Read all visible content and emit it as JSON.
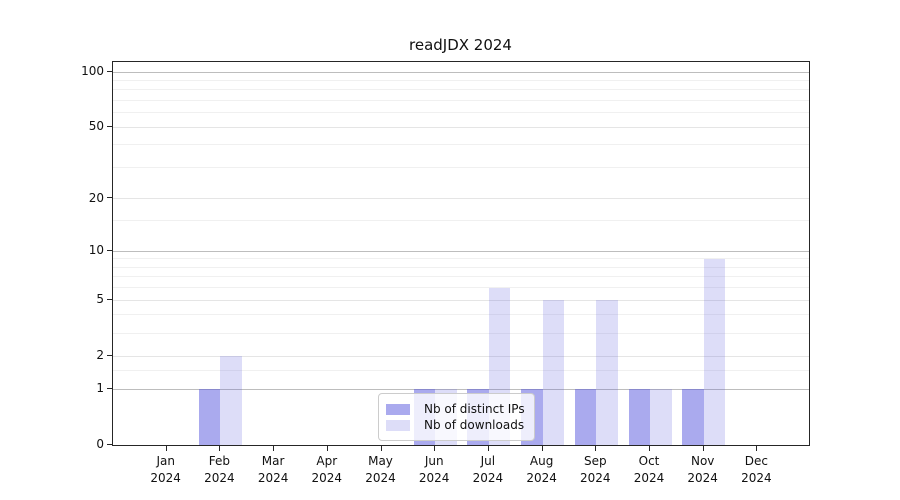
{
  "title": "readJDX 2024",
  "figure": {
    "background": "#ffffff"
  },
  "legend": {
    "position": "lower center",
    "items": [
      {
        "label": "Nb of distinct IPs",
        "color": "rgba(85,85,221,0.5)"
      },
      {
        "label": "Nb of downloads",
        "color": "rgba(85,85,221,0.2)"
      }
    ]
  },
  "chart_data": {
    "type": "bar",
    "title": "readJDX 2024",
    "xlabel": "",
    "ylabel": "",
    "months": [
      "Jan",
      "Feb",
      "Mar",
      "Apr",
      "May",
      "Jun",
      "Jul",
      "Aug",
      "Sep",
      "Oct",
      "Nov",
      "Dec"
    ],
    "year": "2024",
    "series": [
      {
        "name": "Nb of distinct IPs",
        "color": "rgba(85,85,221,0.5)",
        "values": [
          0,
          1,
          0,
          0,
          0,
          1,
          1,
          1,
          1,
          1,
          1,
          0
        ]
      },
      {
        "name": "Nb of downloads",
        "color": "rgba(85,85,221,0.2)",
        "values": [
          0,
          2,
          0,
          0,
          0,
          1,
          6,
          5,
          5,
          1,
          9,
          0
        ]
      }
    ],
    "yticks": [
      0,
      1,
      2,
      5,
      10,
      20,
      50,
      100
    ],
    "ytick_labels": [
      "0",
      "1",
      "2",
      "5",
      "10",
      "20",
      "50",
      "100"
    ],
    "decade_gridlines": [
      1,
      10,
      100
    ],
    "mid_gridlines": [
      2,
      5,
      20,
      50
    ],
    "minor_gridlines": [
      1.5,
      3,
      4,
      6,
      7,
      8,
      9,
      15,
      30,
      40,
      60,
      70,
      80,
      90
    ],
    "scale": "log1p",
    "ylim": [
      0,
      114
    ],
    "grid": true,
    "legend_position": "lower center"
  }
}
